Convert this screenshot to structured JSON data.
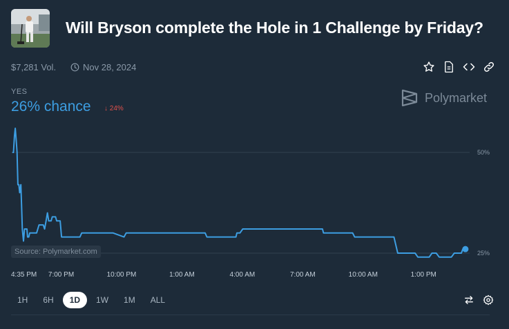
{
  "header": {
    "title": "Will Bryson complete the Hole in 1 Challenge by Friday?",
    "volume": "$7,281 Vol.",
    "date": "Nov 28, 2024"
  },
  "actions": [
    "star-icon",
    "document-icon",
    "code-icon",
    "link-icon"
  ],
  "outcome": {
    "label": "YES",
    "chance": "26% chance",
    "delta": "↓ 24%",
    "accent": "#3d9ee2",
    "down_color": "#e0514b"
  },
  "brand": {
    "name": "Polymarket"
  },
  "source": "Source: Polymarket.com",
  "range_buttons": [
    "1H",
    "6H",
    "1D",
    "1W",
    "1M",
    "ALL"
  ],
  "active_range": "1D",
  "bottom_icons": [
    "swap-icon",
    "settings-icon"
  ],
  "chart_data": {
    "type": "line",
    "title": "",
    "y_ticks": [
      "50%",
      "25%"
    ],
    "y_tick_values": [
      50,
      25
    ],
    "x_ticks": [
      "4:35 PM",
      "7:00 PM",
      "10:00 PM",
      "1:00 AM",
      "4:00 AM",
      "7:00 AM",
      "10:00 AM",
      "1:00 PM"
    ],
    "x_tick_hours": [
      0,
      2.42,
      5.42,
      8.42,
      11.42,
      14.42,
      17.42,
      20.42
    ],
    "series": [
      {
        "color": "#3d9ee2",
        "points": [
          [
            0.0,
            50
          ],
          [
            0.05,
            50
          ],
          [
            0.1,
            54
          ],
          [
            0.14,
            56
          ],
          [
            0.19,
            53
          ],
          [
            0.23,
            50
          ],
          [
            0.27,
            42
          ],
          [
            0.32,
            42
          ],
          [
            0.36,
            40
          ],
          [
            0.42,
            42
          ],
          [
            0.46,
            36
          ],
          [
            0.49,
            31
          ],
          [
            0.55,
            28
          ],
          [
            0.6,
            31
          ],
          [
            0.63,
            31
          ],
          [
            0.72,
            31
          ],
          [
            0.75,
            29
          ],
          [
            0.81,
            29
          ],
          [
            0.86,
            30
          ],
          [
            1.0,
            30
          ],
          [
            1.2,
            30
          ],
          [
            1.32,
            32
          ],
          [
            1.45,
            32
          ],
          [
            1.53,
            32
          ],
          [
            1.6,
            31
          ],
          [
            1.67,
            33
          ],
          [
            1.74,
            35
          ],
          [
            1.8,
            33
          ],
          [
            1.86,
            33
          ],
          [
            1.92,
            33
          ],
          [
            1.98,
            34
          ],
          [
            2.08,
            34
          ],
          [
            2.14,
            34
          ],
          [
            2.2,
            33
          ],
          [
            2.24,
            33
          ],
          [
            2.3,
            33
          ],
          [
            2.37,
            33
          ],
          [
            2.44,
            29
          ],
          [
            3.0,
            29
          ],
          [
            3.35,
            29
          ],
          [
            3.44,
            30
          ],
          [
            4.5,
            30
          ],
          [
            5.0,
            30
          ],
          [
            5.54,
            29
          ],
          [
            5.65,
            30
          ],
          [
            7.0,
            30
          ],
          [
            9.57,
            30
          ],
          [
            9.66,
            29
          ],
          [
            11.1,
            29
          ],
          [
            11.15,
            30
          ],
          [
            11.3,
            30
          ],
          [
            11.44,
            31
          ],
          [
            11.65,
            31
          ],
          [
            13.2,
            31
          ],
          [
            15.4,
            31
          ],
          [
            15.45,
            30
          ],
          [
            16.9,
            30
          ],
          [
            17.0,
            29
          ],
          [
            18.95,
            29
          ],
          [
            19.14,
            25
          ],
          [
            20.0,
            25
          ],
          [
            20.14,
            24
          ],
          [
            20.7,
            24
          ],
          [
            20.84,
            25
          ],
          [
            21.05,
            25
          ],
          [
            21.2,
            24
          ],
          [
            21.8,
            24
          ],
          [
            21.95,
            25
          ],
          [
            22.3,
            25
          ],
          [
            22.37,
            26
          ],
          [
            22.5,
            26
          ]
        ]
      }
    ]
  }
}
